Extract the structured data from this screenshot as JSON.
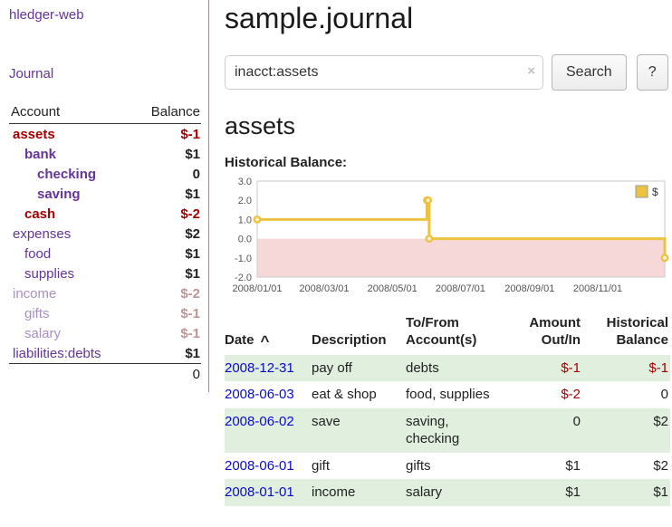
{
  "app": {
    "brand": "hledger-web",
    "nav_journal": "Journal"
  },
  "colors": {
    "link_purple": "#663399",
    "negative_red": "#a40000",
    "dimmed_purple": "#a98fc2",
    "dimmed_red": "#c09494",
    "date_link_blue": "#0a0acc",
    "row_highlight_green": "#e1efdf",
    "chart_line_gold": "#edc240",
    "chart_negative_pink": "#f7d8d8"
  },
  "sidebar": {
    "header": {
      "account": "Account",
      "balance": "Balance"
    },
    "accounts": [
      {
        "name": "assets",
        "balance": "$-1"
      },
      {
        "name": "bank",
        "balance": "$1"
      },
      {
        "name": "checking",
        "balance": "0"
      },
      {
        "name": "saving",
        "balance": "$1"
      },
      {
        "name": "cash",
        "balance": "$-2"
      },
      {
        "name": "expenses",
        "balance": "$2"
      },
      {
        "name": "food",
        "balance": "$1"
      },
      {
        "name": "supplies",
        "balance": "$1"
      },
      {
        "name": "income",
        "balance": "$-2"
      },
      {
        "name": "gifts",
        "balance": "$-1"
      },
      {
        "name": "salary",
        "balance": "$-1"
      },
      {
        "name": "liabilities:debts",
        "balance": "$1"
      }
    ],
    "total": "0"
  },
  "main": {
    "title": "sample.journal",
    "search": {
      "value": "inacct:assets",
      "clear_icon": "×",
      "button": "Search",
      "help": "?"
    },
    "heading": "assets",
    "chart_label": "Historical Balance:"
  },
  "chart_data": {
    "type": "line",
    "step": true,
    "title": "Historical Balance:",
    "series": [
      {
        "name": "$",
        "points": [
          {
            "x": 0,
            "date": "2008-01-01",
            "y": 1
          },
          {
            "x": 152,
            "date": "2008-06-01",
            "y": 2
          },
          {
            "x": 153,
            "date": "2008-06-02",
            "y": 2
          },
          {
            "x": 154,
            "date": "2008-06-03",
            "y": 0
          },
          {
            "x": 365,
            "date": "2008-12-31",
            "y": -1
          }
        ]
      }
    ],
    "ylim": [
      -2,
      3
    ],
    "yticks": [
      3,
      2,
      1,
      0,
      -1,
      -2
    ],
    "ytick_labels": [
      "3.0",
      "2.0",
      "1.0",
      "0.0",
      "-1.0",
      "-2.0"
    ],
    "xmax": 365,
    "xticks": [
      {
        "x": 0,
        "label": "2008/01/01"
      },
      {
        "x": 60,
        "label": "2008/03/01"
      },
      {
        "x": 121,
        "label": "2008/05/01"
      },
      {
        "x": 182,
        "label": "2008/07/01"
      },
      {
        "x": 244,
        "label": "2008/09/01"
      },
      {
        "x": 305,
        "label": "2008/11/01"
      }
    ],
    "legend": {
      "label": "$",
      "position": "top-right"
    },
    "colors": {
      "line": "#edc240",
      "negative_region": "#f7d8d8",
      "marker_fill": "#fdf3d0"
    }
  },
  "journal": {
    "headers": {
      "date": "Date",
      "sort_icon": "^",
      "description": "Description",
      "account": "To/From Account(s)",
      "amount": "Amount Out/In",
      "balance": "Historical Balance"
    },
    "rows": [
      {
        "date": "2008-12-31",
        "description": "pay off",
        "account": "debts",
        "amount": "$-1",
        "balance": "$-1"
      },
      {
        "date": "2008-06-03",
        "description": "eat & shop",
        "account": "food, supplies",
        "amount": "$-2",
        "balance": "0"
      },
      {
        "date": "2008-06-02",
        "description": "save",
        "account": "saving, checking",
        "amount": "0",
        "balance": "$2"
      },
      {
        "date": "2008-06-01",
        "description": "gift",
        "account": "gifts",
        "amount": "$1",
        "balance": "$2"
      },
      {
        "date": "2008-01-01",
        "description": "income",
        "account": "salary",
        "amount": "$1",
        "balance": "$1"
      }
    ]
  }
}
